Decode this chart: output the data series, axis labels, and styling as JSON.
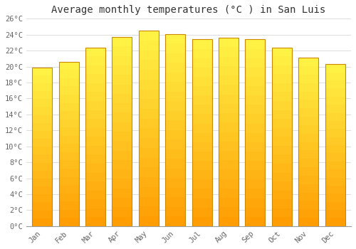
{
  "months": [
    "Jan",
    "Feb",
    "Mar",
    "Apr",
    "May",
    "Jun",
    "Jul",
    "Aug",
    "Sep",
    "Oct",
    "Nov",
    "Dec"
  ],
  "temperatures": [
    19.9,
    20.6,
    22.4,
    23.7,
    24.5,
    24.1,
    23.4,
    23.6,
    23.4,
    22.4,
    21.1,
    20.3
  ],
  "bar_color_top": "#FFCC44",
  "bar_color_bottom": "#FFA000",
  "bar_edge_color": "#CC8800",
  "plot_bg_color": "#FFFFFF",
  "fig_bg_color": "#FFFFFF",
  "grid_color": "#DDDDDD",
  "title": "Average monthly temperatures (°C ) in San Luis",
  "title_fontsize": 10,
  "tick_label_color": "#666666",
  "ytick_labels": [
    "0°C",
    "2°C",
    "4°C",
    "6°C",
    "8°C",
    "10°C",
    "12°C",
    "14°C",
    "16°C",
    "18°C",
    "20°C",
    "22°C",
    "24°C",
    "26°C"
  ],
  "ytick_values": [
    0,
    2,
    4,
    6,
    8,
    10,
    12,
    14,
    16,
    18,
    20,
    22,
    24,
    26
  ],
  "ylim": [
    0,
    26
  ],
  "bar_width": 0.75
}
